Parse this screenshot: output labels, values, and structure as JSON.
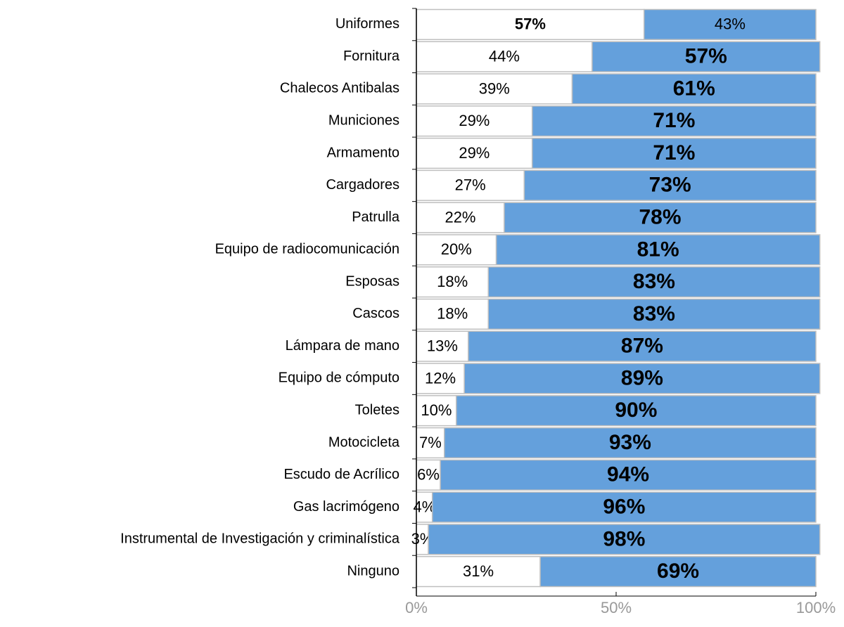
{
  "chart_data": {
    "type": "bar",
    "orientation": "horizontal",
    "stacked": true,
    "categories": [
      "Uniformes",
      "Fornitura",
      "Chalecos Antibalas",
      "Municiones",
      "Armamento",
      "Cargadores",
      "Patrulla",
      "Equipo de radiocomunicación",
      "Esposas",
      "Cascos",
      "Lámpara de mano",
      "Equipo de cómputo",
      "Toletes",
      "Motocicleta",
      "Escudo de Acrílico",
      "Gas lacrimógeno",
      "Instrumental de Investigación y criminalística",
      "Ninguno"
    ],
    "series": [
      {
        "color": "#ffffff",
        "values": [
          57,
          44,
          39,
          29,
          29,
          27,
          22,
          20,
          18,
          18,
          13,
          12,
          10,
          7,
          6,
          4,
          3,
          31
        ],
        "value_labels": [
          "57%",
          "44%",
          "39%",
          "29%",
          "29%",
          "27%",
          "22%",
          "20%",
          "18%",
          "18%",
          "13%",
          "12%",
          "10%",
          "7%",
          "6%",
          "4%",
          "3%",
          "31%"
        ]
      },
      {
        "color": "#64a0dc",
        "values": [
          43,
          57,
          61,
          71,
          71,
          73,
          78,
          81,
          83,
          83,
          87,
          89,
          90,
          93,
          94,
          96,
          98,
          69
        ],
        "value_labels": [
          "43%",
          "57%",
          "61%",
          "71%",
          "71%",
          "73%",
          "78%",
          "81%",
          "83%",
          "83%",
          "87%",
          "89%",
          "90%",
          "93%",
          "94%",
          "96%",
          "98%",
          "69%"
        ]
      }
    ],
    "xlim": [
      0,
      100
    ],
    "xticks": [
      {
        "value": 0,
        "label": "0%"
      },
      {
        "value": 50,
        "label": "50%"
      },
      {
        "value": 100,
        "label": "100%"
      }
    ]
  }
}
